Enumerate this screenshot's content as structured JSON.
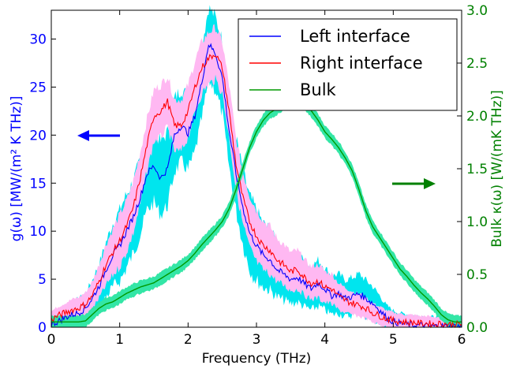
{
  "chart_data": {
    "type": "line",
    "xlabel": "Frequency (THz)",
    "ylabel_left": "g(ω) [MW/(m² K THz)]",
    "ylabel_right": "Bulk κ(ω) [W/(mK THz)]",
    "xlim": [
      0,
      6
    ],
    "ylim_left": [
      0,
      33
    ],
    "ylim_right": [
      0,
      3.0
    ],
    "x_ticks": [
      "0",
      "1",
      "2",
      "3",
      "4",
      "5",
      "6"
    ],
    "left_ticks": [
      "0",
      "5",
      "10",
      "15",
      "20",
      "25",
      "30"
    ],
    "right_ticks": [
      "0.0",
      "0.5",
      "1.0",
      "1.5",
      "2.0",
      "2.5",
      "3.0"
    ],
    "legend_position": "top-right",
    "series": [
      {
        "name": "Left interface",
        "axis": "left",
        "color": "#0000ff",
        "band_color": "#00e5ee",
        "x": [
          0,
          0.1,
          0.2,
          0.3,
          0.4,
          0.5,
          0.6,
          0.7,
          0.8,
          0.9,
          1.0,
          1.1,
          1.2,
          1.3,
          1.4,
          1.5,
          1.6,
          1.7,
          1.8,
          1.9,
          2.0,
          2.1,
          2.2,
          2.3,
          2.4,
          2.5,
          2.6,
          2.7,
          2.8,
          2.9,
          3.0,
          3.1,
          3.2,
          3.3,
          3.4,
          3.5,
          3.6,
          3.7,
          3.8,
          3.9,
          4.0,
          4.1,
          4.2,
          4.3,
          4.4,
          4.5,
          4.6,
          4.7,
          4.8,
          4.9,
          5.0,
          5.1,
          5.2,
          5.3,
          5.4,
          5.5,
          5.6,
          5.7,
          5.8,
          5.9,
          6.0
        ],
        "y": [
          0.3,
          0.6,
          1.0,
          1.3,
          1.5,
          2.0,
          3.0,
          4.3,
          6.0,
          7.5,
          8.5,
          10.0,
          11.5,
          13.5,
          16.0,
          16.8,
          15.5,
          16.5,
          20.0,
          21.0,
          20.2,
          22.0,
          25.5,
          29.5,
          28.5,
          26.0,
          20.5,
          16.0,
          12.5,
          9.8,
          8.5,
          7.5,
          7.0,
          6.0,
          5.5,
          5.0,
          5.2,
          4.5,
          4.0,
          4.6,
          4.0,
          3.3,
          3.5,
          3.0,
          3.2,
          3.5,
          3.0,
          2.5,
          1.8,
          1.0,
          0.6,
          0.4,
          0.3,
          0.2,
          0.2,
          0.1,
          0.1,
          0.1,
          0.1,
          0.1,
          0.1
        ]
      },
      {
        "name": "Right interface",
        "axis": "left",
        "color": "#ff0000",
        "band_color": "#ffb8f2",
        "x": [
          0,
          0.1,
          0.2,
          0.3,
          0.4,
          0.5,
          0.6,
          0.7,
          0.8,
          0.9,
          1.0,
          1.1,
          1.2,
          1.3,
          1.4,
          1.5,
          1.6,
          1.7,
          1.8,
          1.9,
          2.0,
          2.1,
          2.2,
          2.3,
          2.4,
          2.5,
          2.6,
          2.7,
          2.8,
          2.9,
          3.0,
          3.1,
          3.2,
          3.3,
          3.4,
          3.5,
          3.6,
          3.7,
          3.8,
          3.9,
          4.0,
          4.1,
          4.2,
          4.3,
          4.4,
          4.5,
          4.6,
          4.7,
          4.8,
          4.9,
          5.0,
          5.1,
          5.2,
          5.3,
          5.4,
          5.5,
          5.6,
          5.7,
          5.8,
          5.9,
          6.0
        ],
        "y": [
          0.8,
          1.2,
          1.5,
          1.8,
          2.0,
          2.4,
          3.3,
          4.8,
          6.5,
          7.8,
          9.0,
          10.5,
          12.5,
          15.5,
          19.0,
          22.0,
          22.5,
          23.5,
          21.0,
          21.0,
          22.5,
          25.0,
          27.0,
          28.0,
          28.5,
          27.0,
          22.5,
          17.0,
          13.5,
          11.0,
          9.5,
          8.5,
          8.0,
          7.0,
          6.5,
          5.8,
          6.0,
          5.2,
          4.6,
          4.8,
          4.2,
          4.0,
          3.2,
          2.8,
          2.5,
          2.3,
          2.0,
          1.5,
          1.2,
          0.9,
          0.7,
          0.6,
          0.5,
          0.5,
          0.4,
          0.4,
          0.3,
          0.4,
          0.3,
          0.3,
          0.3
        ]
      },
      {
        "name": "Bulk",
        "axis": "right",
        "color": "#009900",
        "band_color": "#33e6a6",
        "x": [
          0,
          0.1,
          0.2,
          0.3,
          0.4,
          0.5,
          0.6,
          0.7,
          0.8,
          0.9,
          1.0,
          1.1,
          1.2,
          1.3,
          1.4,
          1.5,
          1.6,
          1.7,
          1.8,
          1.9,
          2.0,
          2.1,
          2.2,
          2.3,
          2.4,
          2.5,
          2.6,
          2.7,
          2.8,
          2.9,
          3.0,
          3.1,
          3.2,
          3.3,
          3.4,
          3.5,
          3.6,
          3.7,
          3.8,
          3.9,
          4.0,
          4.1,
          4.2,
          4.3,
          4.4,
          4.5,
          4.6,
          4.7,
          4.8,
          4.9,
          5.0,
          5.1,
          5.2,
          5.3,
          5.4,
          5.5,
          5.6,
          5.7,
          5.8,
          5.9,
          6.0
        ],
        "y": [
          0.05,
          0.05,
          0.05,
          0.05,
          0.05,
          0.06,
          0.12,
          0.18,
          0.22,
          0.24,
          0.28,
          0.32,
          0.35,
          0.38,
          0.4,
          0.42,
          0.46,
          0.5,
          0.54,
          0.58,
          0.63,
          0.7,
          0.78,
          0.85,
          0.92,
          1.0,
          1.12,
          1.3,
          1.5,
          1.7,
          1.85,
          1.96,
          2.03,
          2.07,
          2.12,
          2.15,
          2.15,
          2.12,
          2.05,
          1.96,
          1.85,
          1.78,
          1.7,
          1.6,
          1.48,
          1.3,
          1.1,
          0.95,
          0.85,
          0.75,
          0.65,
          0.55,
          0.48,
          0.4,
          0.33,
          0.27,
          0.2,
          0.12,
          0.07,
          0.05,
          0.05
        ]
      }
    ]
  }
}
